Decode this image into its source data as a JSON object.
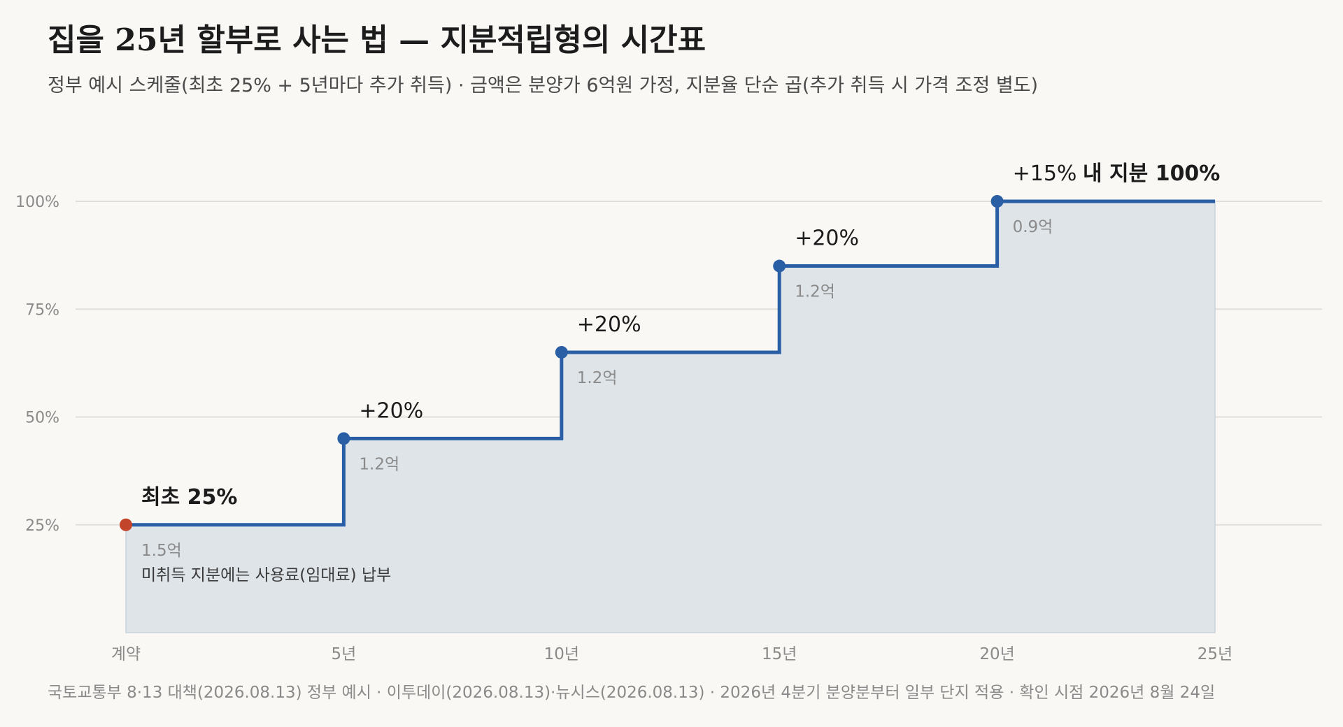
{
  "chart_data": {
    "type": "line",
    "step": true,
    "title": "집을 25년 할부로 사는 법 — 지분적립형의 시간표",
    "subtitle": "정부 예시 스케줄(최초 25% + 5년마다 추가 취득) · 금액은 분양가 6억원 가정, 지분율 단순 곱(추가 취득 시 가격 조정 별도)",
    "x_ticks": [
      "계약",
      "5년",
      "10년",
      "15년",
      "20년",
      "25년"
    ],
    "x": [
      0,
      5,
      10,
      15,
      20,
      25
    ],
    "xlim": [
      0,
      25
    ],
    "ylim": [
      0,
      100
    ],
    "y_ticks": [
      25,
      50,
      75,
      100
    ],
    "y_tick_labels": [
      "25%",
      "50%",
      "75%",
      "100%"
    ],
    "grid": true,
    "series": [
      {
        "values": [
          25,
          45,
          65,
          85,
          100,
          100
        ],
        "color": "#2a5fa5",
        "fill_color": "#dfe4e9",
        "start_marker_color": "#c2452b"
      }
    ],
    "annotations": [
      {
        "x": 0,
        "label": "최초 25%",
        "amount": "1.5억"
      },
      {
        "x": 5,
        "label": "+20%",
        "amount": "1.2억"
      },
      {
        "x": 10,
        "label": "+20%",
        "amount": "1.2억"
      },
      {
        "x": 15,
        "label": "+20%",
        "amount": "1.2억"
      },
      {
        "x": 20,
        "label": "+15%",
        "amount": "0.9억"
      }
    ],
    "end_label": "내 지분 100%",
    "note": "미취득 지분에는 사용료(임대료) 납부",
    "source": "국토교통부 8·13 대책(2026.08.13) 정부 예시 · 이투데이(2026.08.13)·뉴시스(2026.08.13) · 2026년 4분기 분양분부터 일부 단지 적용 · 확인 시점 2026년 8월 24일"
  }
}
